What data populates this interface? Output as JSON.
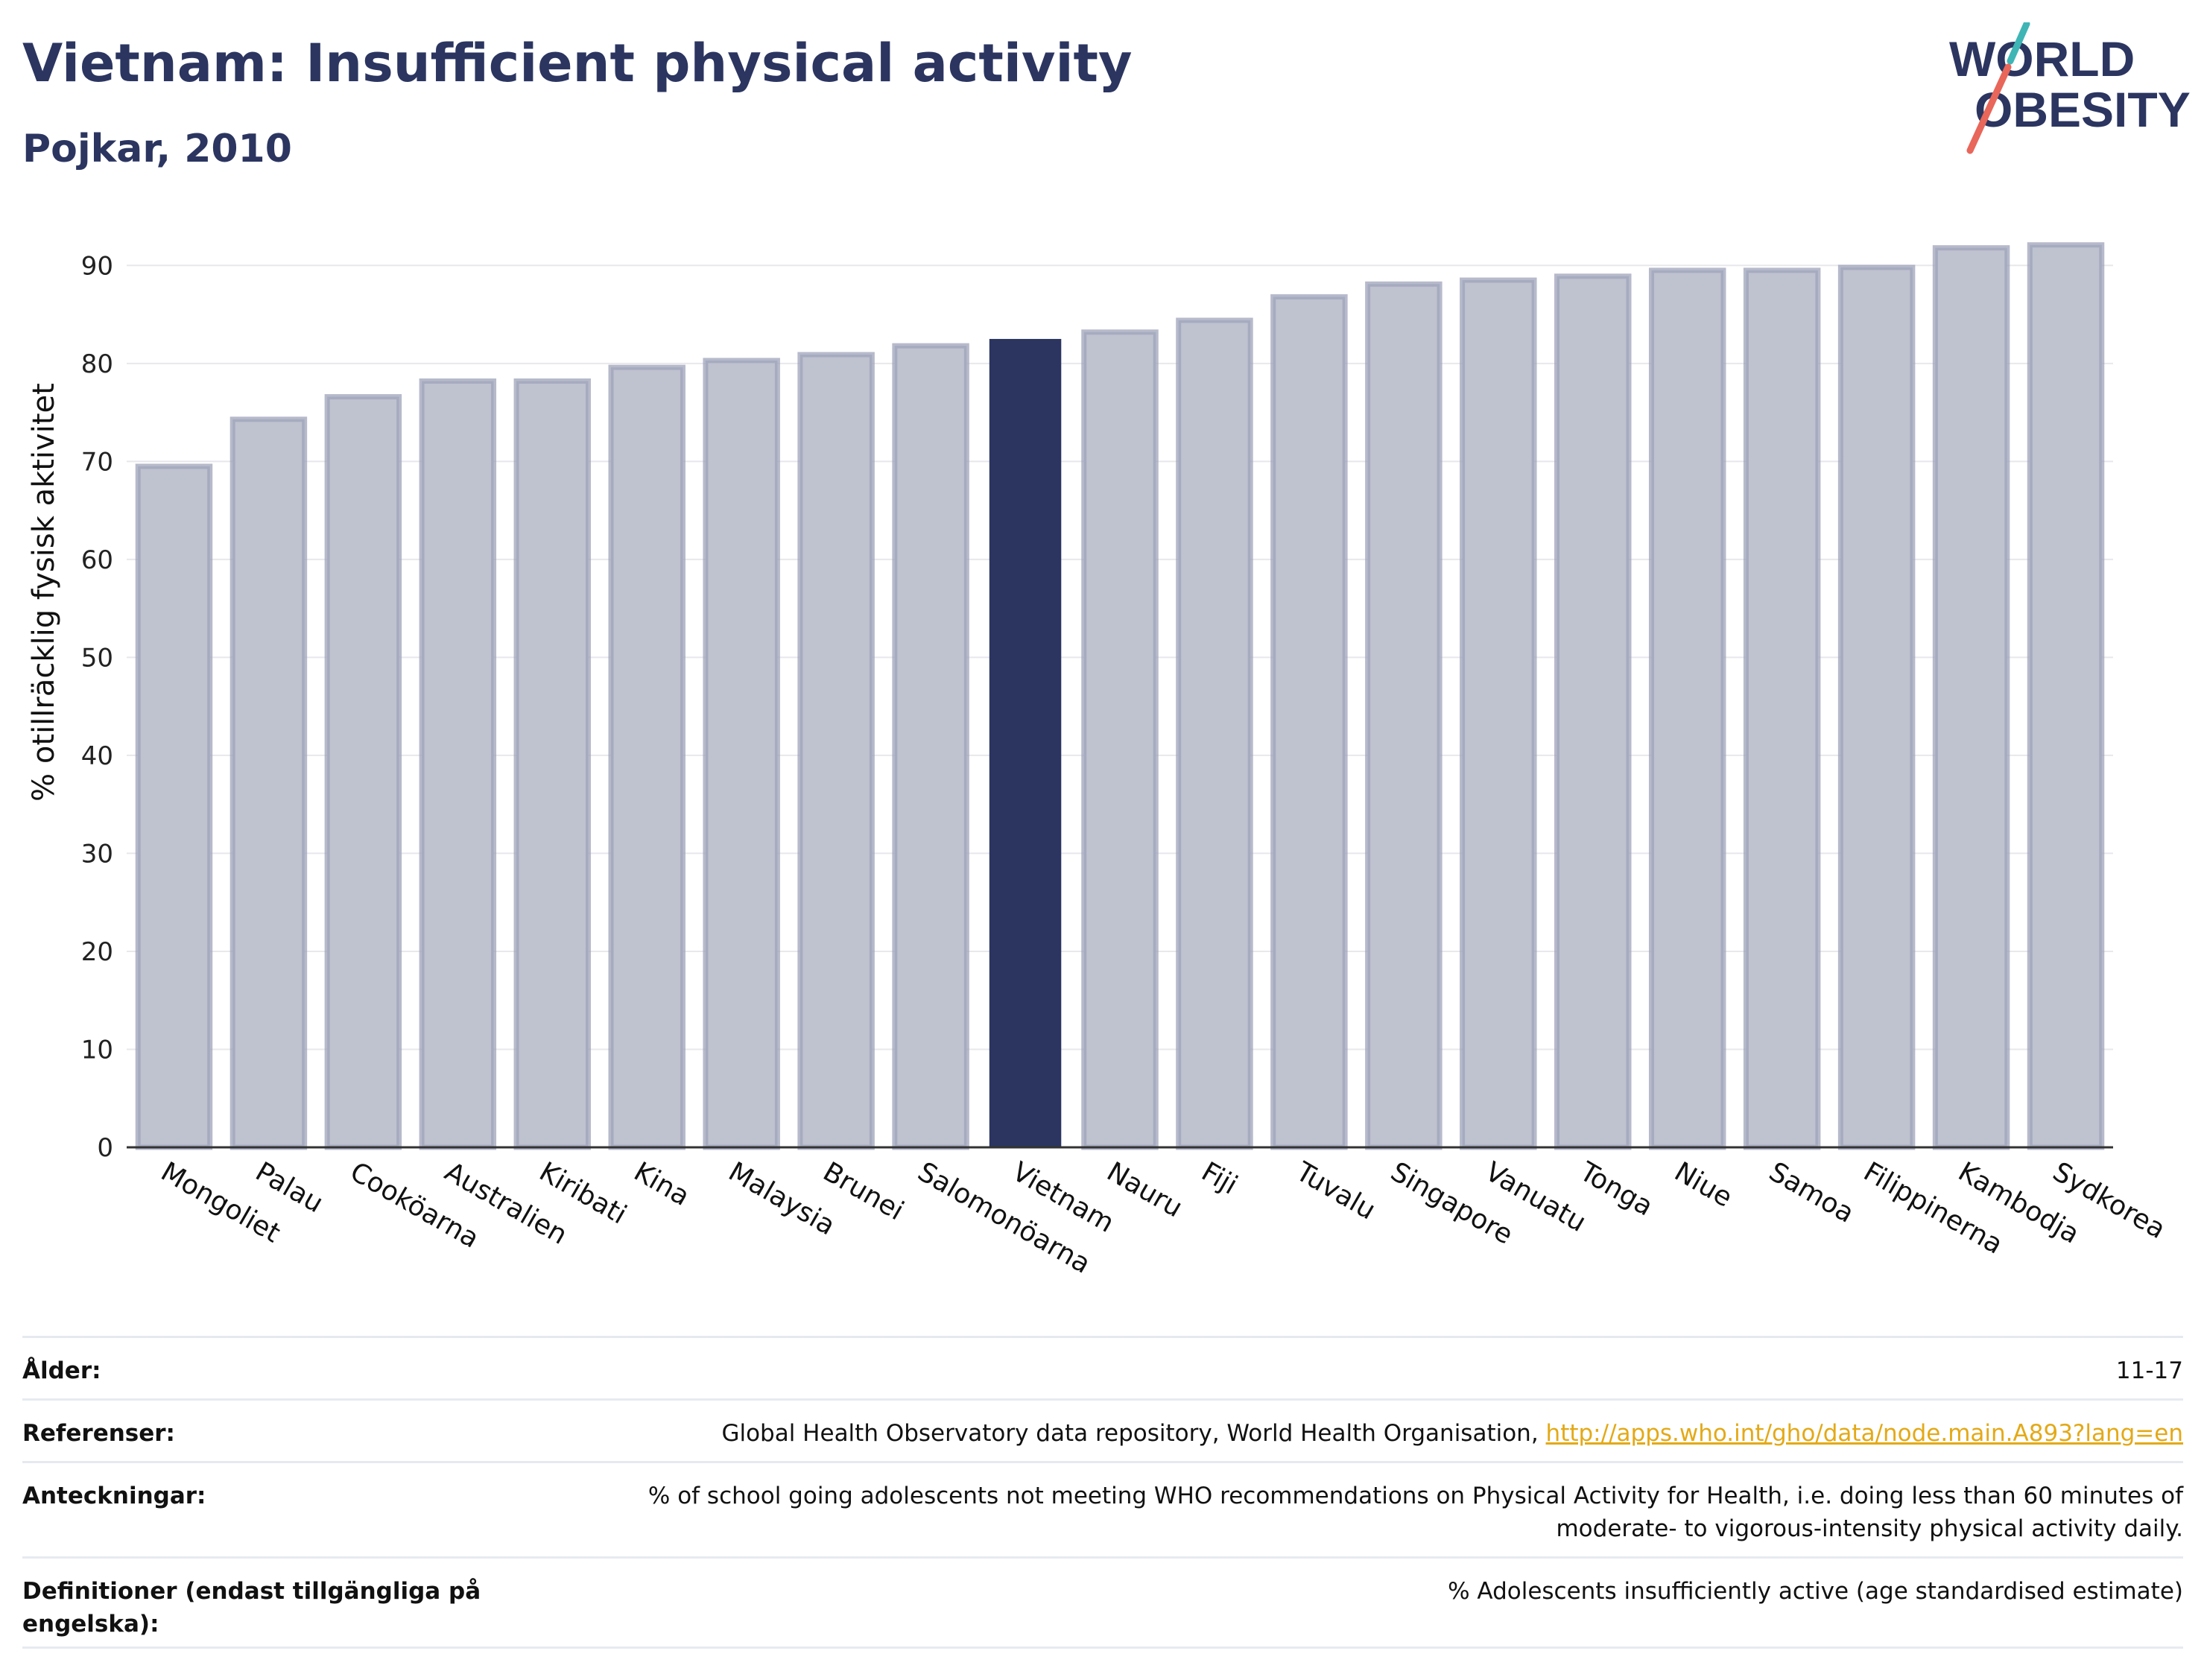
{
  "header": {
    "title": "Vietnam: Insufficient physical activity",
    "subtitle": "Pojkar, 2010"
  },
  "logo": {
    "line1": "WORLD",
    "line2": "OBESITY",
    "colors": {
      "text": "#2b3560",
      "slash_top": "#3fb5b5",
      "slash_bottom": "#e8665a"
    }
  },
  "chart_data": {
    "type": "bar",
    "categories": [
      "Mongoliet",
      "Palau",
      "Cooköarna",
      "Australien",
      "Kiribati",
      "Kina",
      "Malaysia",
      "Brunei",
      "Salomonöarna",
      "Vietnam",
      "Nauru",
      "Fiji",
      "Tuvalu",
      "Singapore",
      "Vanuatu",
      "Tonga",
      "Niue",
      "Samoa",
      "Filippinerna",
      "Kambodja",
      "Sydkorea"
    ],
    "values": [
      69.5,
      74.3,
      76.6,
      78.2,
      78.2,
      79.6,
      80.3,
      80.9,
      81.8,
      82.5,
      83.2,
      84.4,
      86.8,
      88.1,
      88.5,
      88.9,
      89.5,
      89.5,
      89.8,
      91.8,
      92.1
    ],
    "highlight": "Vietnam",
    "title": "Vietnam: Insufficient physical activity",
    "subtitle": "Pojkar, 2010",
    "xlabel": "",
    "ylabel": "% otillräcklig fysisk aktivitet",
    "ylim": [
      0,
      92
    ],
    "yticks": [
      0,
      10,
      20,
      30,
      40,
      50,
      60,
      70,
      80,
      90
    ],
    "grid": true,
    "legend": "none",
    "colors": {
      "bar": "#bfc2cf",
      "bar_edge": "#9ea3ba",
      "highlight": "#2b3560",
      "grid": "#e8e8ec",
      "axis": "#333333"
    }
  },
  "meta": {
    "age": {
      "label": "Ålder:",
      "value": "11-17"
    },
    "references": {
      "label": "Referenser:",
      "value": "Global Health Observatory data repository, World Health Organisation, ",
      "link": "http://apps.who.int/gho/data/node.main.A893?lang=en"
    },
    "notes": {
      "label": "Anteckningar:",
      "value": "% of school going adolescents not meeting WHO recommendations on Physical Activity for Health, i.e. doing less than 60 minutes of moderate- to vigorous-intensity physical activity daily."
    },
    "definitions": {
      "label": "Definitioner (endast tillgängliga på engelska):",
      "value": "% Adolescents insufficiently active (age standardised estimate)"
    }
  }
}
